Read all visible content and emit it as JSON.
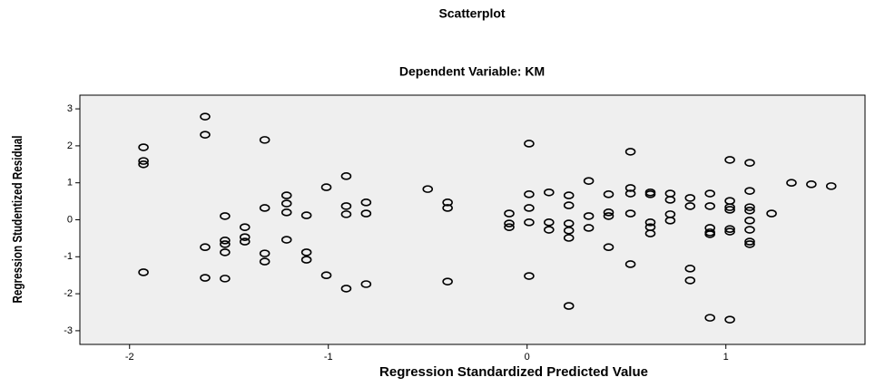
{
  "chart_data": {
    "type": "scatter",
    "title": "Scatterplot",
    "subtitle": "Dependent Variable: KM",
    "x_label": "Regression Standardized Predicted Value",
    "y_label": "Regression Studentized Residual",
    "color": "#000000",
    "xlim": [
      -2.25,
      1.7
    ],
    "ylim": [
      -3.37,
      3.37
    ],
    "xticks": [
      -2,
      -1,
      0,
      1
    ],
    "yticks": [
      -3,
      -2,
      -1,
      0,
      1,
      2,
      3
    ],
    "x": [
      -1.93,
      -1.93,
      -1.93,
      -1.93,
      -1.62,
      -1.62,
      -1.62,
      -1.62,
      -1.52,
      -1.52,
      -1.52,
      -1.52,
      -1.52,
      -1.42,
      -1.42,
      -1.42,
      -1.32,
      -1.32,
      -1.32,
      -1.32,
      -1.21,
      -1.21,
      -1.21,
      -1.21,
      -1.11,
      -1.11,
      -1.11,
      -1.01,
      -1.01,
      -0.91,
      -0.91,
      -0.91,
      -0.91,
      -0.81,
      -0.81,
      -0.81,
      -0.5,
      -0.4,
      -0.4,
      -0.4,
      -0.09,
      -0.09,
      -0.09,
      0.01,
      0.01,
      0.01,
      0.01,
      0.01,
      0.11,
      0.11,
      0.11,
      0.21,
      0.21,
      0.21,
      0.21,
      0.21,
      0.21,
      0.31,
      0.31,
      0.31,
      0.41,
      0.41,
      0.41,
      0.41,
      0.52,
      0.52,
      0.52,
      0.52,
      0.52,
      0.62,
      0.62,
      0.62,
      0.62,
      0.62,
      0.72,
      0.72,
      0.72,
      0.72,
      0.82,
      0.82,
      0.82,
      0.82,
      0.92,
      0.92,
      0.92,
      0.92,
      0.92,
      0.92,
      1.02,
      1.02,
      1.02,
      1.02,
      1.02,
      1.02,
      1.02,
      1.12,
      1.12,
      1.12,
      1.12,
      1.12,
      1.12,
      1.12,
      1.12,
      1.23,
      1.33,
      1.43,
      1.53
    ],
    "values": [
      1.96,
      1.59,
      1.5,
      -1.42,
      2.79,
      2.3,
      -0.74,
      -1.57,
      0.1,
      -0.56,
      -0.66,
      -0.88,
      -1.59,
      -0.2,
      -0.47,
      -0.59,
      2.16,
      0.32,
      -0.91,
      -1.13,
      0.66,
      0.44,
      0.2,
      -0.54,
      0.12,
      -0.88,
      -1.08,
      0.88,
      -1.5,
      1.18,
      0.37,
      0.15,
      -1.86,
      0.47,
      0.17,
      -1.74,
      0.83,
      0.47,
      0.32,
      -1.67,
      0.17,
      -0.1,
      -0.2,
      2.06,
      0.69,
      0.32,
      -0.07,
      -1.52,
      0.74,
      -0.07,
      -0.27,
      0.66,
      0.39,
      -0.1,
      -0.29,
      -0.49,
      -2.33,
      1.05,
      0.1,
      -0.22,
      0.69,
      0.2,
      0.1,
      -0.74,
      1.84,
      0.86,
      0.71,
      0.17,
      -1.2,
      0.74,
      0.69,
      -0.07,
      -0.2,
      -0.37,
      0.71,
      0.54,
      0.15,
      -0.02,
      0.59,
      0.37,
      -1.32,
      -1.64,
      0.71,
      0.37,
      -0.22,
      -0.34,
      -0.39,
      -2.65,
      1.62,
      0.51,
      0.34,
      0.27,
      -0.25,
      -0.32,
      -2.7,
      1.54,
      0.78,
      0.34,
      0.25,
      -0.02,
      -0.27,
      -0.59,
      -0.66,
      0.17,
      1.0,
      0.96,
      0.91
    ]
  }
}
